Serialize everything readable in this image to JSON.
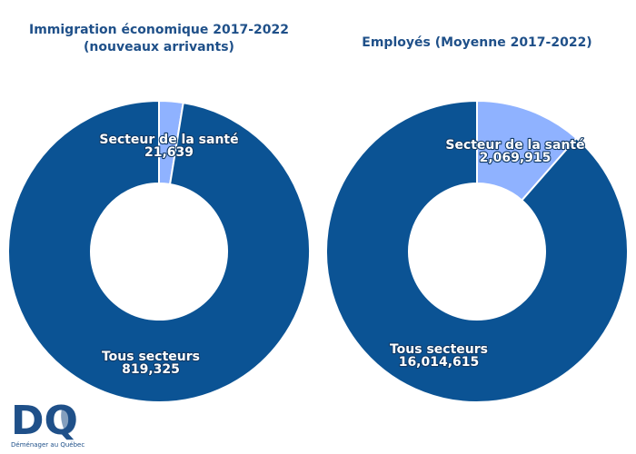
{
  "chart_data": [
    {
      "type": "pie",
      "title_lines": [
        "Immigration économique 2017-2022",
        "(nouveaux arrivants)"
      ],
      "slices": [
        {
          "name": "Secteur de la santé",
          "value": 21639,
          "value_label": "21,639",
          "color": "#8fb2ff"
        },
        {
          "name": "Tous secteurs",
          "value": 819325,
          "value_label": "819,325",
          "color": "#0b5394"
        }
      ]
    },
    {
      "type": "pie",
      "title_lines": [
        "Employés (Moyenne 2017-2022)"
      ],
      "slices": [
        {
          "name": "Secteur de la santé",
          "value": 2069915,
          "value_label": "2,069,915",
          "color": "#8fb2ff"
        },
        {
          "name": "Tous secteurs",
          "value": 16014615,
          "value_label": "16,014,615",
          "color": "#0b5394"
        }
      ]
    }
  ],
  "logo": {
    "mark": "DQ",
    "tagline": "Déménager au Québec",
    "color": "#1f5089"
  }
}
